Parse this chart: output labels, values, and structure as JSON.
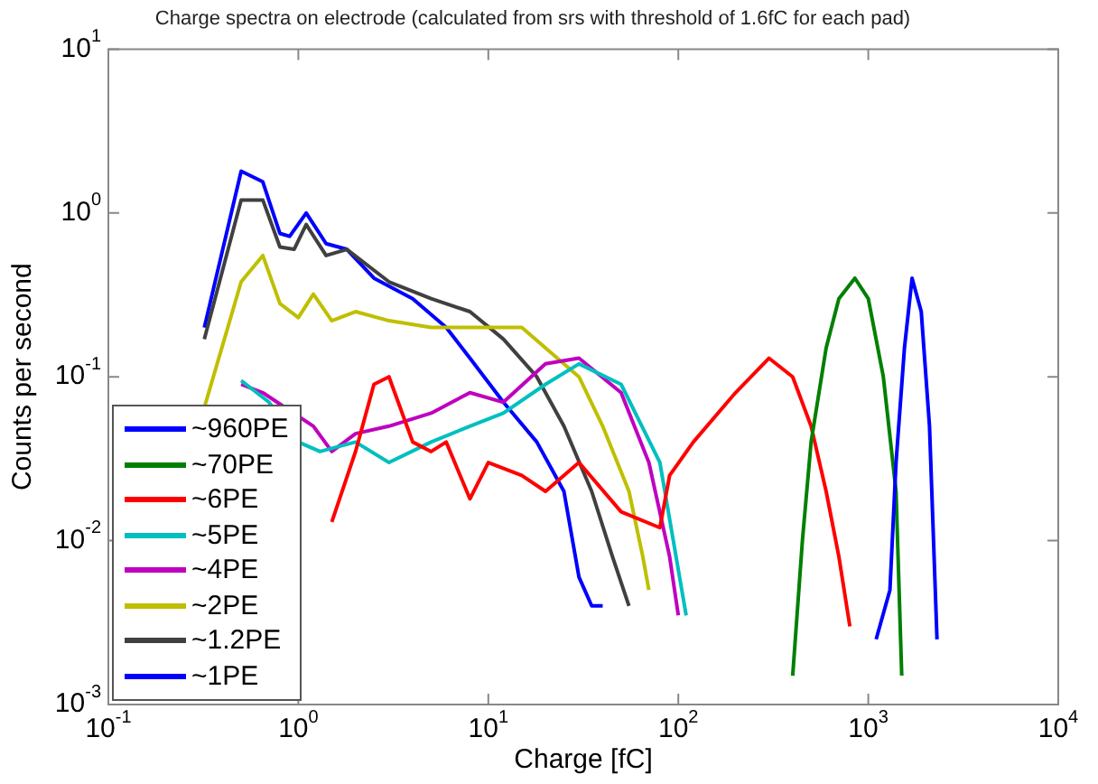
{
  "chart_data": {
    "type": "line",
    "title": "Charge spectra on electrode (calculated from srs with threshold of 1.6fC for each pad)",
    "xlabel": "Charge [fC]",
    "ylabel": "Counts per second",
    "log": "xy",
    "marker": "none",
    "line_style": "solid",
    "legend": "bottom left",
    "xlim": [
      0.1,
      10000
    ],
    "ylim": [
      0.001,
      10
    ],
    "xticks": [
      {
        "value": 0.1,
        "label": "10$^{-1}$"
      },
      {
        "value": 1,
        "label": "10$^{0}$"
      },
      {
        "value": 10,
        "label": "10$^{1}$"
      },
      {
        "value": 100,
        "label": "10$^{2}$"
      },
      {
        "value": 1000,
        "label": "10$^{3}$"
      },
      {
        "value": 10000,
        "label": "10$^{4}$"
      }
    ],
    "yticks": [
      {
        "value": 0.001,
        "label": "10$^{-3}$"
      },
      {
        "value": 0.01,
        "label": "10$^{-2}$"
      },
      {
        "value": 0.1,
        "label": "10$^{-1}$"
      },
      {
        "value": 1,
        "label": "10$^{0}$"
      },
      {
        "value": 10,
        "label": "10$^{1}$"
      }
    ],
    "series": [
      {
        "name": "~960PE",
        "color": "#0000ff",
        "x": [
          1100,
          1300,
          1400,
          1550,
          1700,
          1900,
          2100,
          2300
        ],
        "values": [
          0.0025,
          0.005,
          0.03,
          0.15,
          0.4,
          0.25,
          0.05,
          0.0025
        ]
      },
      {
        "name": "~70PE",
        "color": "#008000",
        "x": [
          400,
          450,
          500,
          600,
          700,
          850,
          1000,
          1200,
          1400,
          1500
        ],
        "values": [
          0.0015,
          0.01,
          0.04,
          0.15,
          0.3,
          0.4,
          0.3,
          0.1,
          0.02,
          0.0015
        ]
      },
      {
        "name": "~6PE",
        "color": "#ff0000",
        "x": [
          1.5,
          2,
          2.5,
          3,
          4,
          5,
          6,
          8,
          10,
          15,
          20,
          30,
          50,
          80,
          90,
          120,
          200,
          300,
          400,
          500,
          600,
          700,
          800
        ],
        "values": [
          0.013,
          0.035,
          0.09,
          0.1,
          0.04,
          0.035,
          0.04,
          0.018,
          0.03,
          0.025,
          0.02,
          0.03,
          0.015,
          0.012,
          0.025,
          0.04,
          0.08,
          0.13,
          0.1,
          0.05,
          0.02,
          0.008,
          0.003
        ]
      },
      {
        "name": "~5PE",
        "color": "#00bfbf",
        "x": [
          0.5,
          0.7,
          1,
          1.3,
          2,
          3,
          5,
          8,
          12,
          20,
          30,
          50,
          80,
          110
        ],
        "values": [
          0.095,
          0.07,
          0.04,
          0.035,
          0.04,
          0.03,
          0.04,
          0.05,
          0.06,
          0.09,
          0.12,
          0.09,
          0.03,
          0.0035
        ]
      },
      {
        "name": "~4PE",
        "color": "#bf00bf",
        "x": [
          0.5,
          0.65,
          1.2,
          1.5,
          2,
          3,
          5,
          8,
          12,
          20,
          30,
          50,
          70,
          90,
          100
        ],
        "values": [
          0.09,
          0.08,
          0.05,
          0.035,
          0.045,
          0.05,
          0.06,
          0.08,
          0.07,
          0.12,
          0.13,
          0.08,
          0.03,
          0.008,
          0.0035
        ]
      },
      {
        "name": "~2PE",
        "color": "#bfbf00",
        "x": [
          0.32,
          0.5,
          0.65,
          0.8,
          1,
          1.2,
          1.5,
          2,
          3,
          5,
          10,
          15,
          20,
          30,
          40,
          55,
          65,
          70
        ],
        "values": [
          0.065,
          0.38,
          0.55,
          0.28,
          0.23,
          0.32,
          0.22,
          0.25,
          0.22,
          0.2,
          0.2,
          0.2,
          0.15,
          0.1,
          0.05,
          0.02,
          0.008,
          0.005
        ]
      },
      {
        "name": "~1.2PE",
        "color": "#404040",
        "x": [
          0.32,
          0.5,
          0.65,
          0.8,
          0.95,
          1.1,
          1.4,
          1.8,
          3,
          5,
          8,
          12,
          18,
          25,
          35,
          45,
          55
        ],
        "values": [
          0.17,
          1.2,
          1.2,
          0.62,
          0.6,
          0.85,
          0.55,
          0.6,
          0.38,
          0.3,
          0.25,
          0.17,
          0.1,
          0.05,
          0.02,
          0.008,
          0.004
        ]
      },
      {
        "name": "~1PE",
        "color": "#0000ff",
        "x": [
          0.32,
          0.5,
          0.65,
          0.8,
          0.9,
          1.1,
          1.4,
          1.8,
          2.5,
          4,
          6,
          8,
          12,
          18,
          25,
          30,
          35,
          40
        ],
        "values": [
          0.2,
          1.8,
          1.55,
          0.75,
          0.72,
          1,
          0.65,
          0.6,
          0.4,
          0.3,
          0.2,
          0.13,
          0.07,
          0.04,
          0.02,
          0.006,
          0.004,
          0.004
        ]
      }
    ]
  }
}
